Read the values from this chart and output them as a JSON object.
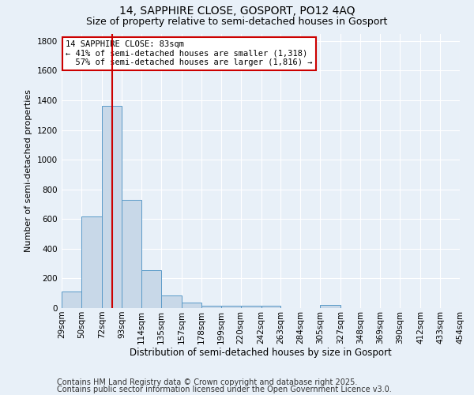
{
  "title1": "14, SAPPHIRE CLOSE, GOSPORT, PO12 4AQ",
  "title2": "Size of property relative to semi-detached houses in Gosport",
  "xlabel": "Distribution of semi-detached houses by size in Gosport",
  "ylabel": "Number of semi-detached properties",
  "footnote1": "Contains HM Land Registry data © Crown copyright and database right 2025.",
  "footnote2": "Contains public sector information licensed under the Open Government Licence v3.0.",
  "bin_labels": [
    "29sqm",
    "50sqm",
    "72sqm",
    "93sqm",
    "114sqm",
    "135sqm",
    "157sqm",
    "178sqm",
    "199sqm",
    "220sqm",
    "242sqm",
    "263sqm",
    "284sqm",
    "305sqm",
    "327sqm",
    "348sqm",
    "369sqm",
    "390sqm",
    "412sqm",
    "433sqm",
    "454sqm"
  ],
  "bin_edges": [
    29,
    50,
    72,
    93,
    114,
    135,
    157,
    178,
    199,
    220,
    242,
    263,
    284,
    305,
    327,
    348,
    369,
    390,
    412,
    433,
    454
  ],
  "bar_heights": [
    112,
    615,
    1365,
    730,
    255,
    85,
    38,
    18,
    18,
    18,
    18,
    0,
    0,
    20,
    0,
    0,
    0,
    0,
    0,
    0
  ],
  "bar_color": "#c8d8e8",
  "bar_edge_color": "#5a9ac8",
  "vline_x": 83,
  "vline_color": "#cc0000",
  "annotation_line1": "14 SAPPHIRE CLOSE: 83sqm",
  "annotation_line2": "← 41% of semi-detached houses are smaller (1,318)",
  "annotation_line3": "  57% of semi-detached houses are larger (1,816) →",
  "annotation_box_color": "#ffffff",
  "annotation_box_edge": "#cc0000",
  "ylim": [
    0,
    1850
  ],
  "yticks": [
    0,
    200,
    400,
    600,
    800,
    1000,
    1200,
    1400,
    1600,
    1800
  ],
  "background_color": "#e8f0f8",
  "grid_color": "#ffffff",
  "title1_fontsize": 10,
  "title2_fontsize": 9,
  "ylabel_fontsize": 8,
  "xlabel_fontsize": 8.5,
  "tick_fontsize": 7.5,
  "footnote_fontsize": 7
}
